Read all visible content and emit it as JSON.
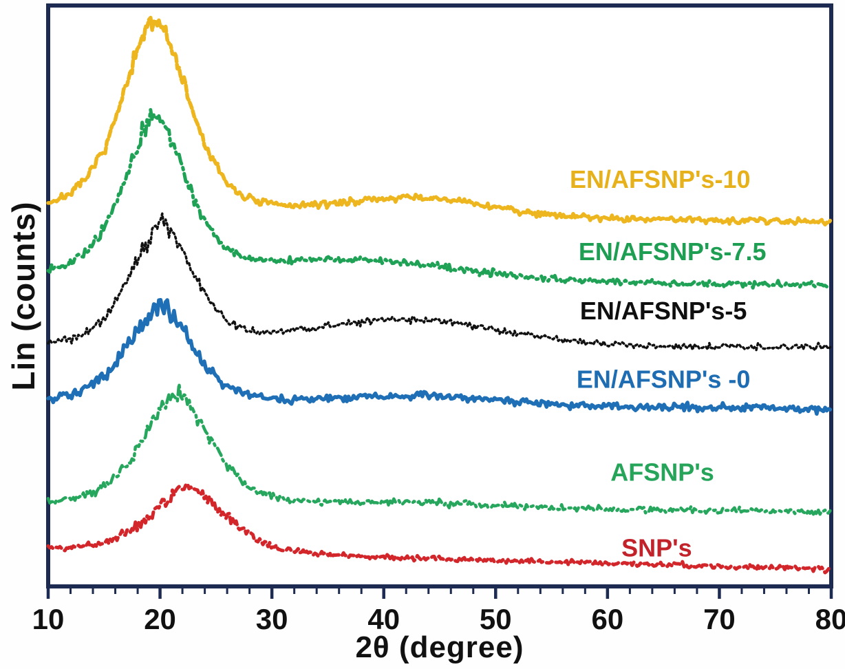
{
  "chart_data": {
    "type": "line",
    "title": "",
    "xlabel": "2θ (degree)",
    "ylabel": "Lin (counts)",
    "x_range": [
      10,
      80
    ],
    "x_major_ticks": [
      10,
      20,
      30,
      40,
      50,
      60,
      70,
      80
    ],
    "x_minor_tick_step": 2,
    "y_range_counts": [
      0,
      1000
    ],
    "y_ticks": "none (linear intensity, arbitrary units, curves stacked with offsets)",
    "grid": false,
    "legend_position": "inline colored labels above each curve near 2θ ≈ 65°",
    "axis_color": "#1d2a52",
    "tick_label_color": "#111111",
    "series": [
      {
        "name": "EN/AFSNP's-10",
        "color": "#EDB51E",
        "line_style": "dashed",
        "dash": "9 4",
        "width": 5.5,
        "label": {
          "text": "EN/AFSNP's-10",
          "color": "#E7B11B",
          "x_deg": 64.7,
          "y_counts": 700
        },
        "model": {
          "baseline_start": 643,
          "baseline_end": 628,
          "peak": {
            "center_deg": 19.6,
            "amplitude": 332,
            "width": 3.2
          },
          "hump": {
            "center_deg": 43,
            "amplitude": 30,
            "sigma": 6.5
          },
          "noise": 5,
          "seed": 7
        },
        "points": [
          [
            10,
            663
          ],
          [
            15,
            797
          ],
          [
            19.6,
            975
          ],
          [
            25,
            724
          ],
          [
            30,
            658
          ],
          [
            40,
            668
          ],
          [
            45,
            668
          ],
          [
            50,
            655
          ],
          [
            60,
            635
          ],
          [
            70,
            631
          ],
          [
            80,
            628
          ]
        ]
      },
      {
        "name": "EN/AFSNP's-7.5",
        "color": "#1FA156",
        "line_style": "dash-dot",
        "dash": "14 6 3 6",
        "width": 5,
        "label": {
          "text": "EN/AFSNP's-7.5",
          "color": "#1E9E53",
          "x_deg": 65.8,
          "y_counts": 576
        },
        "model": {
          "baseline_start": 535,
          "baseline_end": 518,
          "peak": {
            "center_deg": 19.6,
            "amplitude": 272,
            "width": 3.0
          },
          "hump": {
            "center_deg": 38,
            "amplitude": 30,
            "sigma": 9
          },
          "noise": 4.5,
          "seed": 13
        },
        "points": [
          [
            10,
            548
          ],
          [
            15,
            616
          ],
          [
            19.6,
            806
          ],
          [
            25,
            592
          ],
          [
            30,
            561
          ],
          [
            40,
            559
          ],
          [
            45,
            550
          ],
          [
            50,
            535
          ],
          [
            60,
            521
          ],
          [
            70,
            519
          ],
          [
            80,
            517
          ]
        ]
      },
      {
        "name": "EN/AFSNP's-5",
        "color": "#121212",
        "line_style": "dotted",
        "dash": "3 4",
        "width": 3.5,
        "label": {
          "text": "EN/AFSNP's-5",
          "color": "#0f0f0f",
          "x_deg": 65.0,
          "y_counts": 474
        },
        "model": {
          "baseline_start": 412,
          "baseline_end": 412,
          "peak": {
            "center_deg": 20.2,
            "amplitude": 212,
            "width": 3.0
          },
          "hump": {
            "center_deg": 42,
            "amplitude": 45,
            "sigma": 8.5
          },
          "noise": 5,
          "seed": 21
        },
        "points": [
          [
            10,
            420
          ],
          [
            15,
            462
          ],
          [
            20.2,
            624
          ],
          [
            25,
            475
          ],
          [
            30,
            437
          ],
          [
            40,
            458
          ],
          [
            45,
            455
          ],
          [
            50,
            440
          ],
          [
            60,
            415
          ],
          [
            70,
            413
          ],
          [
            80,
            412
          ]
        ]
      },
      {
        "name": "EN/AFSNP's -0",
        "color": "#1E6FB5",
        "line_style": "solid",
        "dash": "",
        "width": 5.5,
        "label": {
          "text": "EN/AFSNP's -0",
          "color": "#1E6CB2",
          "x_deg": 65.0,
          "y_counts": 356
        },
        "model": {
          "baseline_start": 316,
          "baseline_end": 306,
          "peak": {
            "center_deg": 19.9,
            "amplitude": 168,
            "width": 3.1
          },
          "hump": {
            "center_deg": 43,
            "amplitude": 16,
            "sigma": 7
          },
          "noise": 5.5,
          "seed": 34
        },
        "points": [
          [
            10,
            323
          ],
          [
            15,
            363
          ],
          [
            19.9,
            482
          ],
          [
            25,
            358
          ],
          [
            30,
            323
          ],
          [
            40,
            329
          ],
          [
            45,
            325
          ],
          [
            50,
            318
          ],
          [
            60,
            308
          ],
          [
            70,
            305
          ],
          [
            80,
            303
          ]
        ]
      },
      {
        "name": "AFSNP's",
        "color": "#27A75D",
        "line_style": "dash-dot",
        "dash": "12 6 3 6",
        "width": 4.5,
        "label": {
          "text": "AFSNP's",
          "color": "#25A45A",
          "x_deg": 64.9,
          "y_counts": 196
        },
        "model": {
          "baseline_start": 140,
          "baseline_end": 128,
          "peak": {
            "center_deg": 21.5,
            "amplitude": 192,
            "width": 3.3
          },
          "hump": {
            "center_deg": 43,
            "amplitude": 8,
            "sigma": 8
          },
          "noise": 4.5,
          "seed": 55
        },
        "points": [
          [
            10,
            147
          ],
          [
            15,
            172
          ],
          [
            21.5,
            330
          ],
          [
            25,
            237
          ],
          [
            30,
            155
          ],
          [
            40,
            147
          ],
          [
            45,
            143
          ],
          [
            50,
            139
          ],
          [
            60,
            133
          ],
          [
            70,
            130
          ],
          [
            80,
            128
          ]
        ]
      },
      {
        "name": "SNP's",
        "color": "#D3262B",
        "line_style": "dashed",
        "dash": "9 6",
        "width": 5,
        "label": {
          "text": "SNP's",
          "color": "#C2232B",
          "x_deg": 64.4,
          "y_counts": 66
        },
        "model": {
          "baseline_start": 62,
          "baseline_end": 30,
          "peak": {
            "center_deg": 22.6,
            "amplitude": 114,
            "width": 3.6
          },
          "hump": {
            "center_deg": 43,
            "amplitude": 0,
            "sigma": 8
          },
          "noise": 4,
          "seed": 89
        },
        "points": [
          [
            10,
            62
          ],
          [
            15,
            76
          ],
          [
            22.6,
            171
          ],
          [
            25,
            141
          ],
          [
            30,
            71
          ],
          [
            40,
            51
          ],
          [
            45,
            48
          ],
          [
            50,
            44
          ],
          [
            60,
            38
          ],
          [
            70,
            34
          ],
          [
            80,
            30
          ]
        ]
      }
    ]
  }
}
